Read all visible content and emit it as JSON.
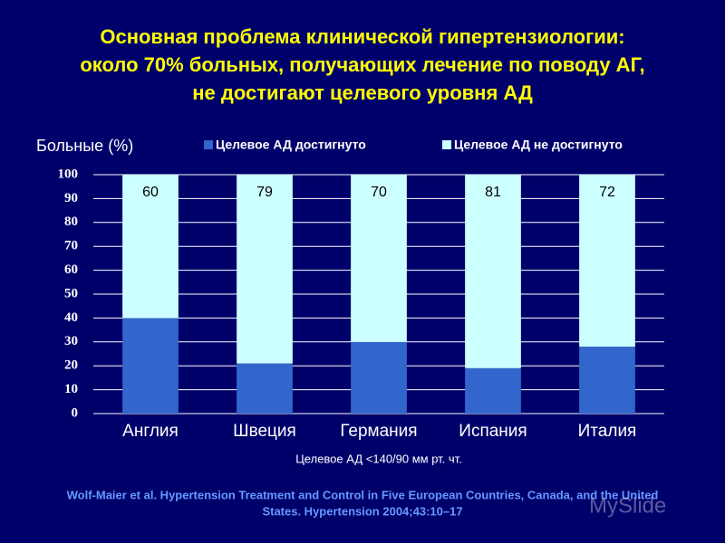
{
  "chart_data": {
    "type": "stacked_bar",
    "title": [
      "Основная проблема клинической гипертензиологии:",
      "около 70% больных, получающих лечение по поводу АГ,",
      "не достигают целевого уровня АД"
    ],
    "ylabel": "Больные (%)",
    "xlabel": "Целевое АД <140/90 мм рт. чт.",
    "source": [
      "Wolf-Maier et al. Hypertension Treatment and Control in Five European Countries, Canada, and the United",
      "States. Hypertension 2004;43:10–17"
    ],
    "watermark": "MySlide",
    "categories": [
      "Англия",
      "Швеция",
      "Германия",
      "Испания",
      "Италия"
    ],
    "series": [
      {
        "name": "Целевое АД достигнуто",
        "color": "#3366cc",
        "values": [
          40,
          21,
          30,
          19,
          28
        ]
      },
      {
        "name": "Целевое АД не достигнуто",
        "color": "#ccffff",
        "values": [
          60,
          79,
          70,
          81,
          72
        ]
      }
    ],
    "data_labels_series": 1,
    "ylim": [
      0,
      100
    ],
    "yticks": [
      0,
      10,
      20,
      30,
      40,
      50,
      60,
      70,
      80,
      90,
      100
    ],
    "grid": true
  }
}
